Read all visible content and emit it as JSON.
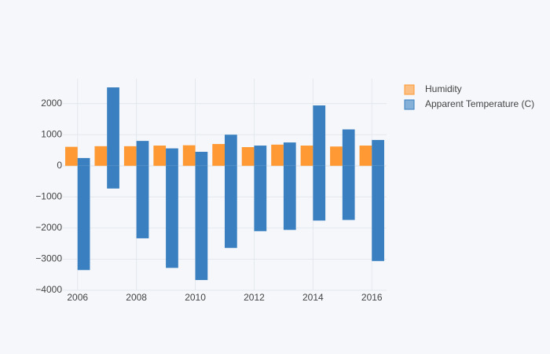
{
  "chart_data": {
    "type": "bar",
    "x": [
      2006,
      2007,
      2008,
      2009,
      2010,
      2011,
      2012,
      2013,
      2014,
      2015,
      2016
    ],
    "series": [
      {
        "name": "Humidity",
        "color": "#ff9933",
        "values": [
          610,
          630,
          630,
          650,
          660,
          700,
          600,
          680,
          650,
          620,
          650
        ]
      },
      {
        "name": "Apparent Temperature (C)",
        "color": "#3a80c0",
        "values": [
          250,
          2520,
          800,
          560,
          450,
          1000,
          650,
          750,
          1940,
          1170,
          830
        ],
        "negative_values": [
          -3350,
          -730,
          -2330,
          -3280,
          -3670,
          -2640,
          -2100,
          -2060,
          -1760,
          -1740,
          -3060
        ]
      }
    ],
    "xlim": [
      2005.5,
      2016.5
    ],
    "xticks": [
      2006,
      2008,
      2010,
      2012,
      2014,
      2016
    ],
    "ylim": [
      -4000,
      2800
    ],
    "yticks": [
      {
        "value": -4000,
        "label": "−4000"
      },
      {
        "value": -3000,
        "label": "−3000"
      },
      {
        "value": -2000,
        "label": "−2000"
      },
      {
        "value": -1000,
        "label": "−1000"
      },
      0,
      1000,
      2000
    ],
    "grid": true,
    "legend": "top-right"
  }
}
